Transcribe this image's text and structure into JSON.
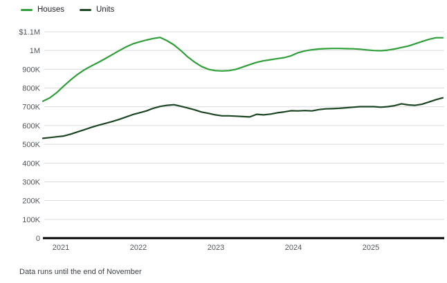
{
  "legend": {
    "houses": {
      "label": "Houses",
      "color": "#2e9e38"
    },
    "units": {
      "label": "Units",
      "color": "#1b4422"
    }
  },
  "footnote": "Data runs until the end of November",
  "chart_data": {
    "type": "line",
    "title": "",
    "xlabel": "",
    "ylabel": "",
    "x_unit": "month",
    "x_range": {
      "start": "2021-01",
      "end": "2025-11",
      "count": 59
    },
    "x_tick_labels": [
      "2021",
      "2022",
      "2023",
      "2024",
      "2025"
    ],
    "y_tick_labels": [
      "$1.1M",
      "1M",
      "900K",
      "800K",
      "700K",
      "600K",
      "500K",
      "400K",
      "300K",
      "200K",
      "100K",
      "0"
    ],
    "y_tick_values_k": [
      1100,
      1000,
      900,
      800,
      700,
      600,
      500,
      400,
      300,
      200,
      100,
      0
    ],
    "ylim_k": [
      0,
      1100
    ],
    "grid": "horizontal",
    "legend_position": "top-left",
    "grid_color": "#d9d9d9",
    "axis_color": "#000000",
    "tick_color": "#50555a",
    "series": [
      {
        "name": "Houses",
        "color": "#2e9e38",
        "values_k": [
          730,
          748,
          775,
          810,
          843,
          872,
          897,
          917,
          936,
          956,
          977,
          998,
          1018,
          1035,
          1046,
          1056,
          1064,
          1070,
          1052,
          1030,
          1000,
          966,
          938,
          915,
          900,
          893,
          891,
          893,
          900,
          912,
          925,
          937,
          945,
          951,
          957,
          962,
          972,
          988,
          998,
          1004,
          1008,
          1010,
          1011,
          1011,
          1010,
          1009,
          1007,
          1003,
          1000,
          999,
          1002,
          1008,
          1016,
          1024,
          1036,
          1048,
          1060,
          1068,
          1068
        ]
      },
      {
        "name": "Units",
        "color": "#1b4422",
        "values_k": [
          532,
          536,
          540,
          544,
          554,
          566,
          578,
          590,
          601,
          611,
          621,
          632,
          645,
          658,
          668,
          678,
          692,
          702,
          708,
          711,
          703,
          694,
          684,
          672,
          665,
          657,
          652,
          652,
          650,
          648,
          646,
          660,
          657,
          661,
          668,
          673,
          679,
          678,
          680,
          678,
          685,
          689,
          690,
          692,
          695,
          698,
          701,
          701,
          701,
          698,
          701,
          706,
          716,
          710,
          708,
          714,
          726,
          738,
          748
        ]
      }
    ]
  }
}
